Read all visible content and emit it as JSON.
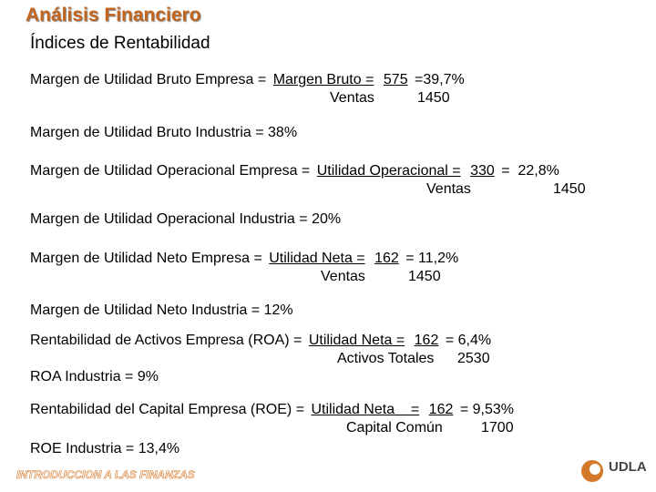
{
  "header": {
    "title": "Análisis Financiero",
    "subtitle": "Índices de Rentabilidad"
  },
  "ratios": [
    {
      "label": "Margen de Utilidad Bruto Empresa =",
      "numerator": "Margen Bruto =",
      "numerator_value": 575,
      "result": "=39,7%",
      "denominator": "Ventas",
      "denominator_value": 1450
    },
    {
      "text": "Margen de Utilidad Bruto Industria = 38%"
    },
    {
      "label": "Margen de Utilidad Operacional Empresa =",
      "numerator": "Utilidad Operacional =",
      "numerator_value": 330,
      "result": "=  22,8%",
      "denominator": "Ventas",
      "denominator_value": 1450
    },
    {
      "text": "Margen de Utilidad Operacional Industria = 20%"
    },
    {
      "label": "Margen de Utilidad Neto Empresa =",
      "numerator": "Utilidad Neta =",
      "numerator_value": 162,
      "result": "= 11,2%",
      "denominator": "Ventas",
      "denominator_value": 1450
    },
    {
      "text": "Margen de Utilidad Neto Industria = 12%"
    },
    {
      "label": "Rentabilidad de Activos Empresa (ROA) =",
      "numerator": "Utilidad Neta =",
      "numerator_value": 162,
      "result": "= 6,4%",
      "denominator": "Activos Totales",
      "denominator_value": 2530
    },
    {
      "text": "ROA Industria = 9%"
    },
    {
      "label": "Rentabilidad del Capital Empresa (ROE) =",
      "numerator": "Utilidad Neta    =",
      "numerator_value": 162,
      "result": "= 9,53%",
      "denominator": "Capital Común",
      "denominator_value": 1700
    },
    {
      "text": "ROE Industria = 13,4%"
    }
  ],
  "footer": {
    "course": "INTRODUCCION A LAS FINANZAS",
    "logo": "UDLA"
  }
}
